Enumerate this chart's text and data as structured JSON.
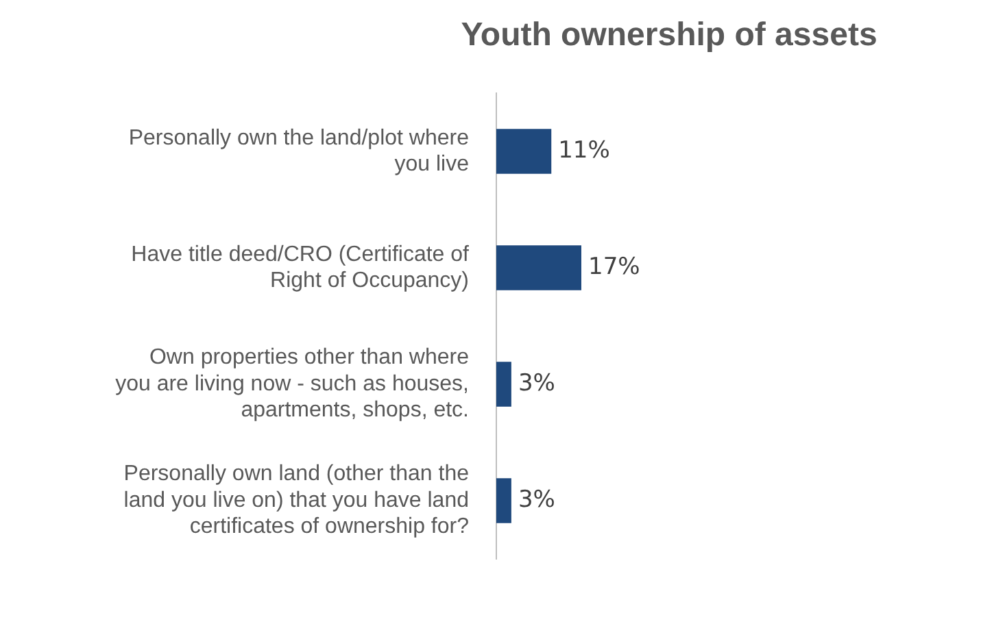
{
  "chart_data": {
    "type": "bar",
    "orientation": "horizontal",
    "title": "Youth ownership of assets",
    "categories": [
      "Personally own the land/plot where you live",
      "Have title deed/CRO (Certificate of Right of Occupancy)",
      "Own properties other than where you are living now - such as houses, apartments, shops, etc.",
      "Personally own land (other than the land you live on) that you have land certificates of ownership for?"
    ],
    "values": [
      11,
      17,
      3,
      3
    ],
    "value_labels": [
      "11%",
      "17%",
      "3%",
      "3%"
    ],
    "color": "#1f497d"
  }
}
